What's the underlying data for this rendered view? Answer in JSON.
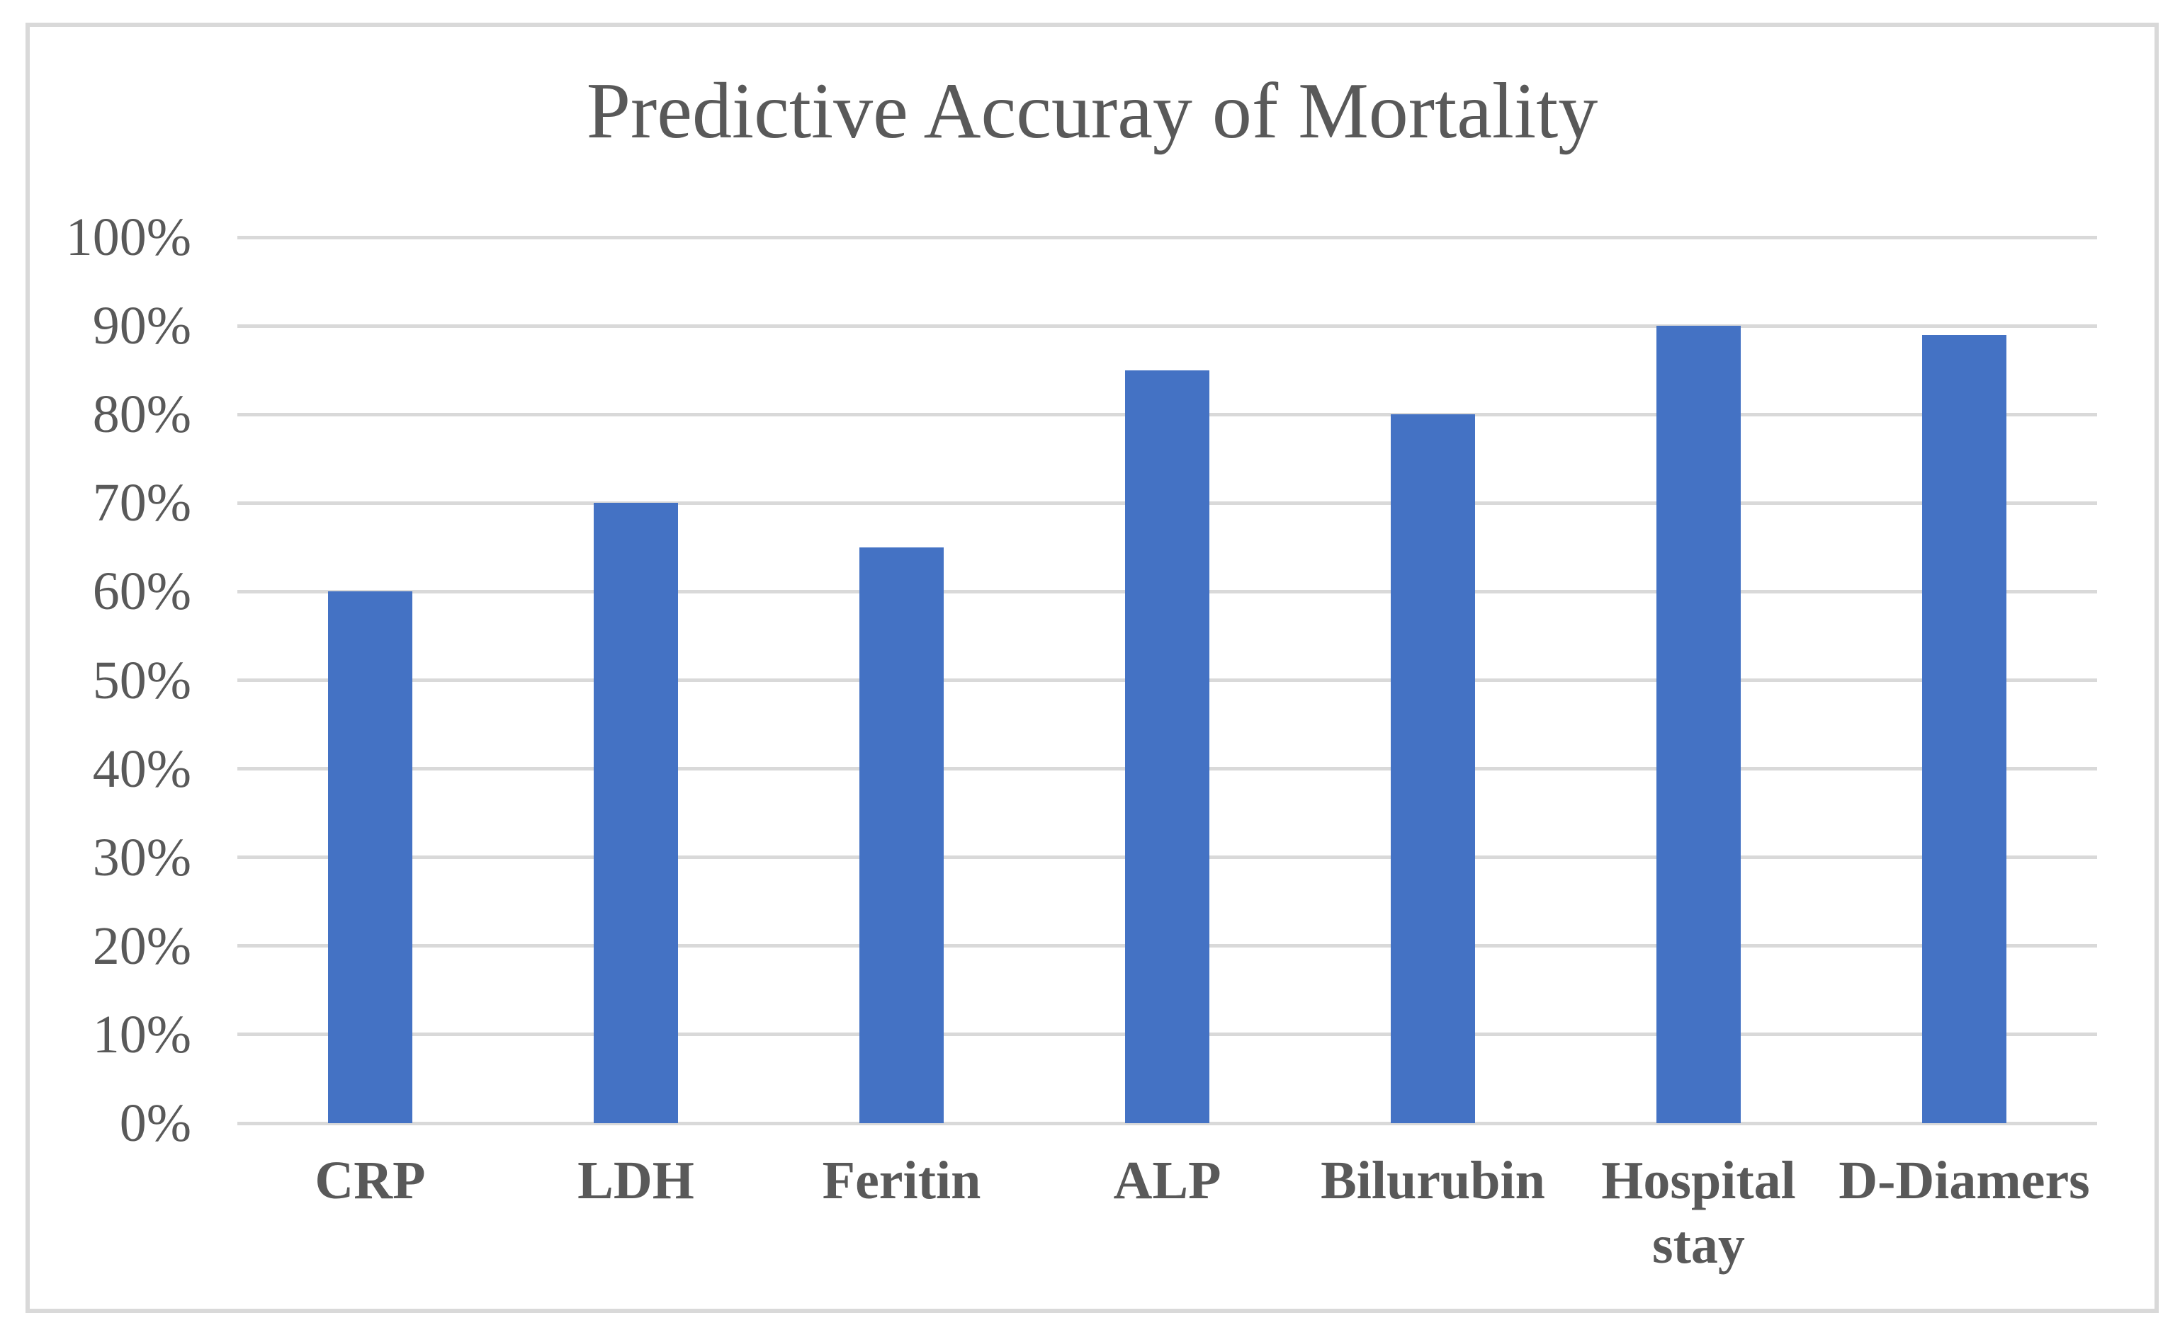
{
  "chart_data": {
    "type": "bar",
    "title": "Predictive Accuray of Mortality",
    "categories": [
      "CRP",
      "LDH",
      "Feritin",
      "ALP",
      "Bilurubin",
      "Hospital stay",
      "D-Diamers"
    ],
    "values": [
      60,
      70,
      65,
      85,
      80,
      90,
      89
    ],
    "unit": "%",
    "xlabel": "",
    "ylabel": "",
    "ylim": [
      0,
      100
    ],
    "y_tick_step": 10,
    "y_tick_labels": [
      "100%",
      "90%",
      "80%",
      "70%",
      "60%",
      "50%",
      "40%",
      "30%",
      "20%",
      "10%",
      "0%"
    ],
    "grid": true,
    "legend": false,
    "data_labels": false,
    "bar_color": "#4472c4",
    "gridline_color": "#d9d9d9",
    "frame_border_color": "#d9d9d9",
    "text_color": "#595959",
    "background_color": "#ffffff"
  }
}
